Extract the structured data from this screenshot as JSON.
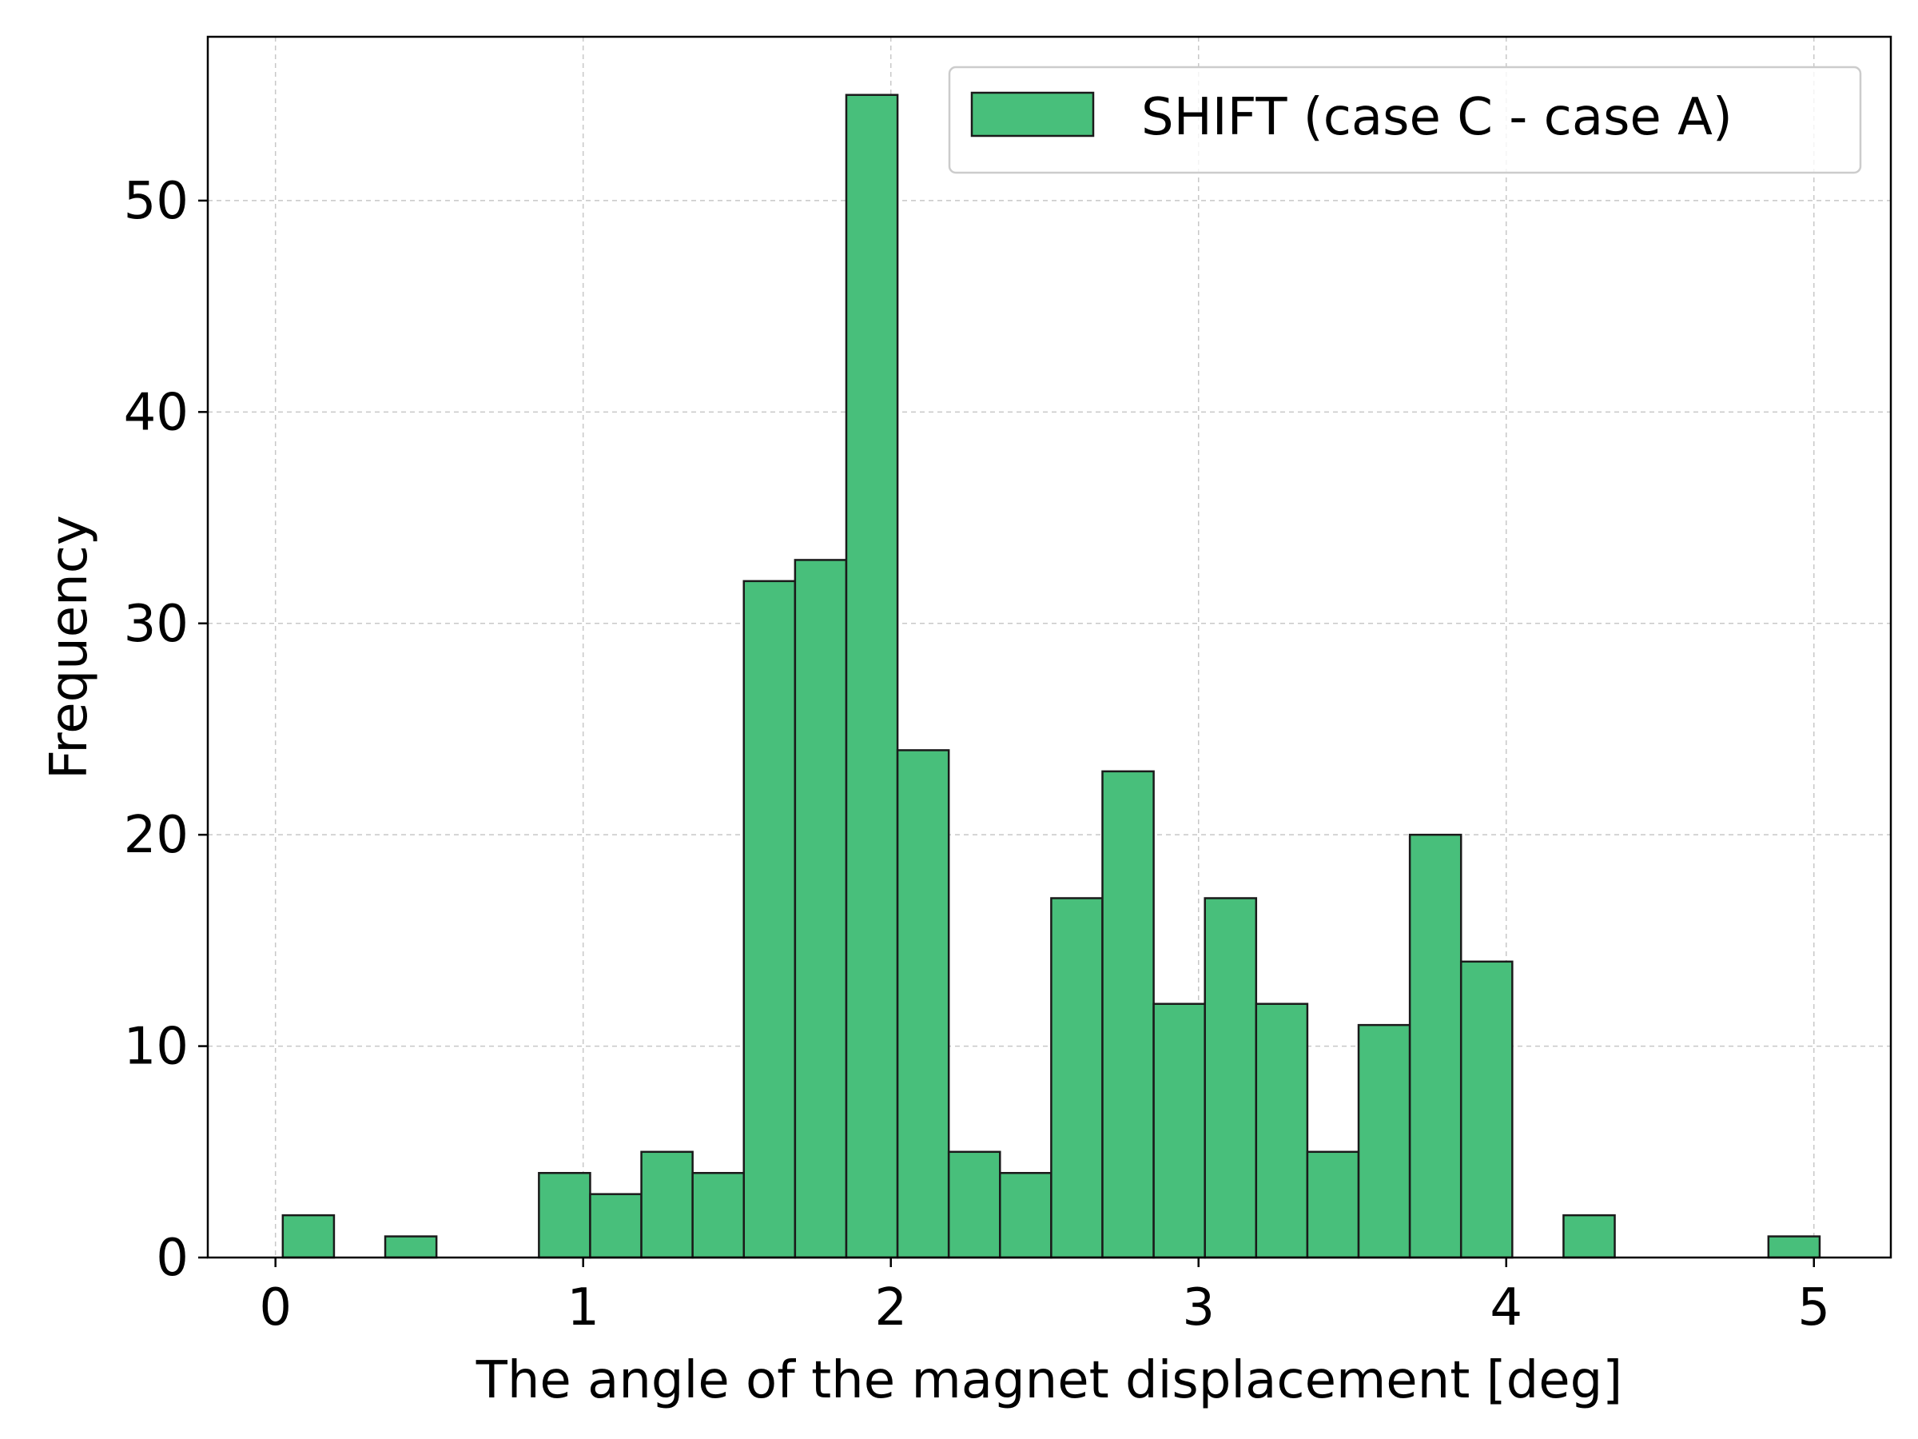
{
  "chart_data": {
    "type": "bar",
    "subtype": "histogram",
    "xlabel": "The angle of the magnet displacement [deg]",
    "ylabel": "Frequency",
    "xlim": [
      -0.22,
      5.25
    ],
    "ylim": [
      0,
      57.75
    ],
    "xticks": [
      0,
      1,
      2,
      3,
      4,
      5
    ],
    "yticks": [
      0,
      10,
      20,
      30,
      40,
      50
    ],
    "grid": true,
    "legend_position": "top-right",
    "bin_width": 0.1665,
    "bin_start": 0.0237,
    "series": [
      {
        "name": "SHIFT (case C - case A)",
        "color": "#48bf7b",
        "edge_color": "#1a1a1a",
        "values": [
          2,
          0,
          1,
          0,
          0,
          4,
          3,
          5,
          4,
          32,
          33,
          55,
          24,
          5,
          4,
          17,
          23,
          12,
          17,
          12,
          5,
          11,
          20,
          14,
          0,
          2,
          0,
          0,
          0,
          1
        ]
      }
    ]
  }
}
